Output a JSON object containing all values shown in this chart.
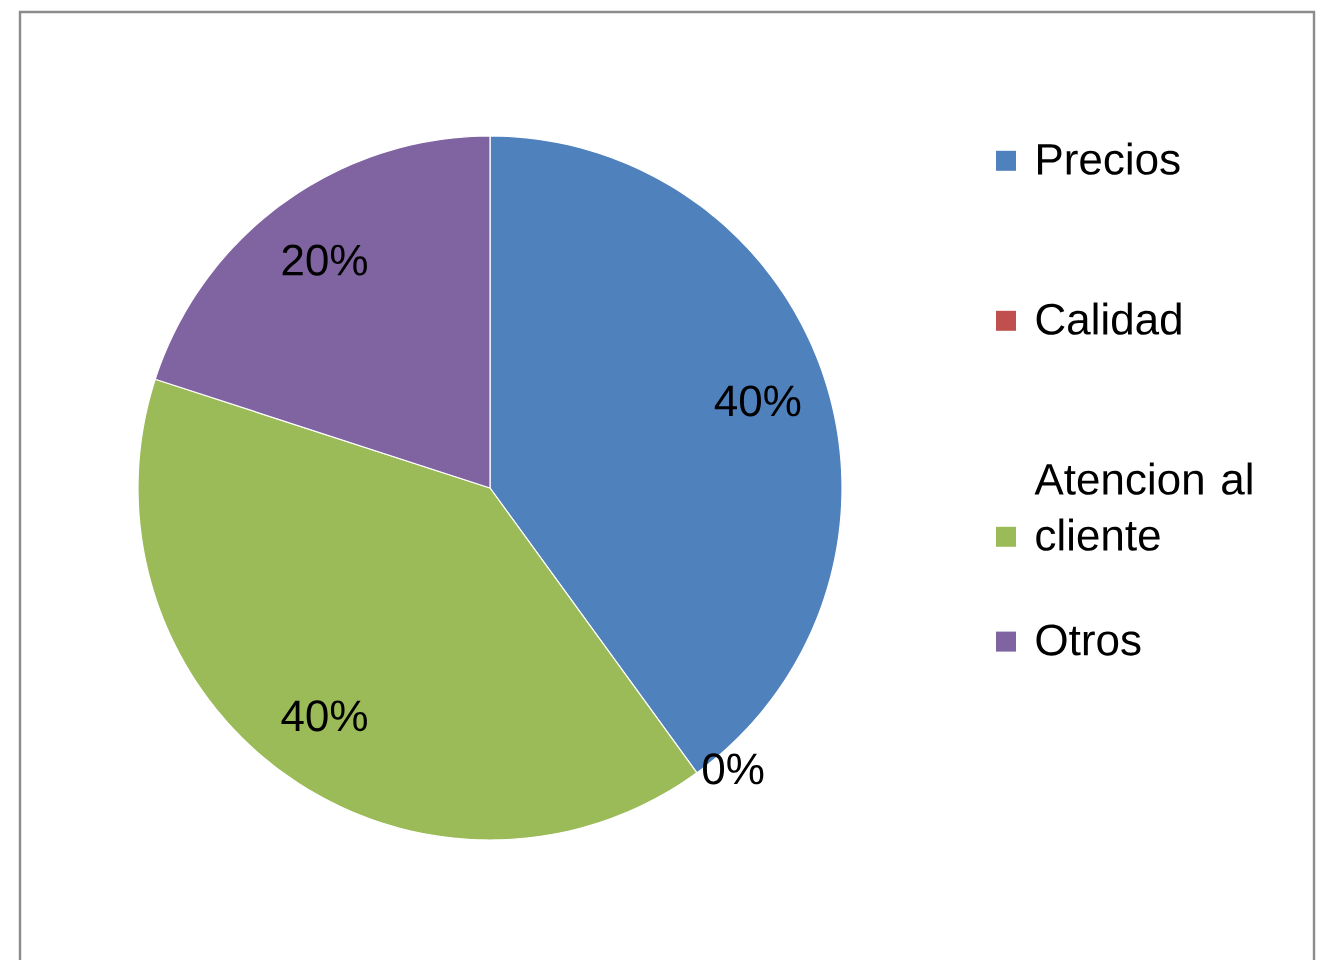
{
  "chart_data": {
    "type": "pie",
    "categories": [
      "Precios",
      "Calidad",
      "Atencion al cliente",
      "Otros"
    ],
    "values": [
      40,
      0,
      40,
      20
    ],
    "value_labels": [
      "40%",
      "0%",
      "40%",
      "20%"
    ],
    "colors": [
      "#4f81bd",
      "#c0504d",
      "#9bbb59",
      "#8064a2"
    ],
    "legend": "right"
  }
}
